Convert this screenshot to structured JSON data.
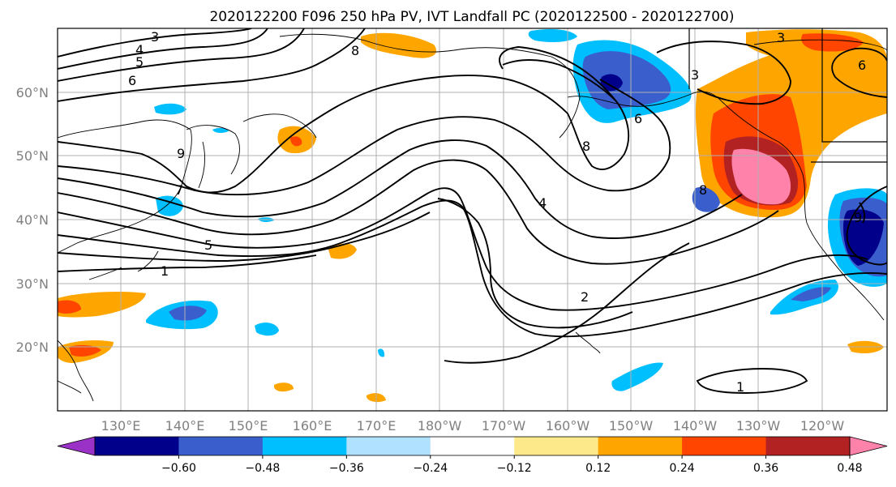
{
  "title": "2020122200 F096 250 hPa PV, IVT Landfall PC (2020122500 - 2020122700)",
  "lat_labels": [
    "60°N",
    "50°N",
    "40°N",
    "30°N",
    "20°N"
  ],
  "lon_labels": [
    "130°E",
    "140°E",
    "150°E",
    "160°E",
    "170°E",
    "180°W",
    "170°W",
    "160°W",
    "150°W",
    "140°W",
    "130°W",
    "120°W"
  ],
  "contour_labels": [
    "3",
    "4",
    "5",
    "6",
    "8",
    "7",
    "5",
    "1",
    "9",
    "8",
    "4",
    "2",
    "3",
    "6",
    "8",
    "6",
    "9",
    "1",
    "3"
  ],
  "colorbar": {
    "colors": [
      "#9b32c8",
      "#00008b",
      "#3a5fcd",
      "#00bfff",
      "#b0e2ff",
      "#ffffff",
      "#fde98a",
      "#ffa500",
      "#ff4500",
      "#b22222",
      "#ff82ab"
    ],
    "tick_labels": [
      "−0.60",
      "−0.48",
      "−0.36",
      "−0.24",
      "−0.12",
      "0.12",
      "0.24",
      "0.36",
      "0.48",
      "0.60"
    ]
  }
}
